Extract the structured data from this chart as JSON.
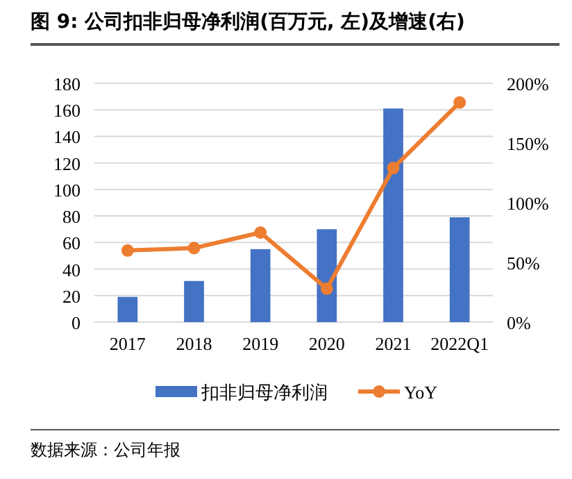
{
  "chart_data": {
    "type": "bar",
    "title": "图 9: 公司扣非归母净利润(百万元, 左)及增速(右)",
    "categories": [
      "2017",
      "2018",
      "2019",
      "2020",
      "2021",
      "2022Q1"
    ],
    "series": [
      {
        "name": "扣非归母净利润",
        "color": "#4472c4",
        "values": [
          19,
          31,
          55,
          70,
          161,
          79
        ]
      },
      {
        "name": "YoY",
        "type": "line",
        "axis": "y2",
        "color": "#ed7d31",
        "marker": "circle",
        "values": [
          60,
          62,
          75,
          28,
          129,
          184
        ]
      }
    ],
    "ylim": [
      0,
      180
    ],
    "yticks": [
      0,
      20,
      40,
      60,
      80,
      100,
      120,
      140,
      160,
      180
    ],
    "y2lim": [
      0,
      200
    ],
    "y2ticks": [
      {
        "value": 0,
        "label": "0%"
      },
      {
        "value": 50,
        "label": "50%"
      },
      {
        "value": 100,
        "label": "100%"
      },
      {
        "value": 150,
        "label": "150%"
      },
      {
        "value": 200,
        "label": "200%"
      }
    ],
    "grid": "y",
    "legend": "bottom",
    "annotations": [
      "数据来源：公司年报"
    ]
  }
}
